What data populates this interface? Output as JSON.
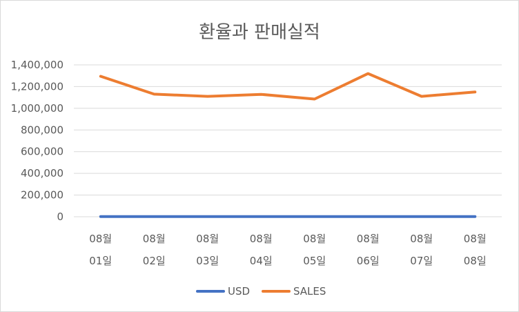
{
  "chart_data": {
    "type": "line",
    "title": "환율과 판매실적",
    "categories": [
      [
        "08월",
        "01일"
      ],
      [
        "08월",
        "02일"
      ],
      [
        "08월",
        "03일"
      ],
      [
        "08월",
        "04일"
      ],
      [
        "08월",
        "05일"
      ],
      [
        "08월",
        "06일"
      ],
      [
        "08월",
        "07일"
      ],
      [
        "08월",
        "08일"
      ]
    ],
    "ylim": [
      0,
      1400000
    ],
    "yticks": [
      0,
      200000,
      400000,
      600000,
      800000,
      1000000,
      1200000,
      1400000
    ],
    "ytick_labels": [
      "0",
      "200,000",
      "400,000",
      "600,000",
      "800,000",
      "1,000,000",
      "1,200,000",
      "1,400,000"
    ],
    "grid": true,
    "legend": "bottom",
    "series": [
      {
        "name": "USD",
        "color": "#4472C4",
        "values": [
          1200,
          1200,
          1200,
          1200,
          1190,
          1200,
          1200,
          1200
        ]
      },
      {
        "name": "SALES",
        "color": "#ED7D31",
        "values": [
          1295000,
          1130000,
          1110000,
          1128000,
          1085000,
          1320000,
          1110000,
          1150000
        ]
      }
    ]
  }
}
